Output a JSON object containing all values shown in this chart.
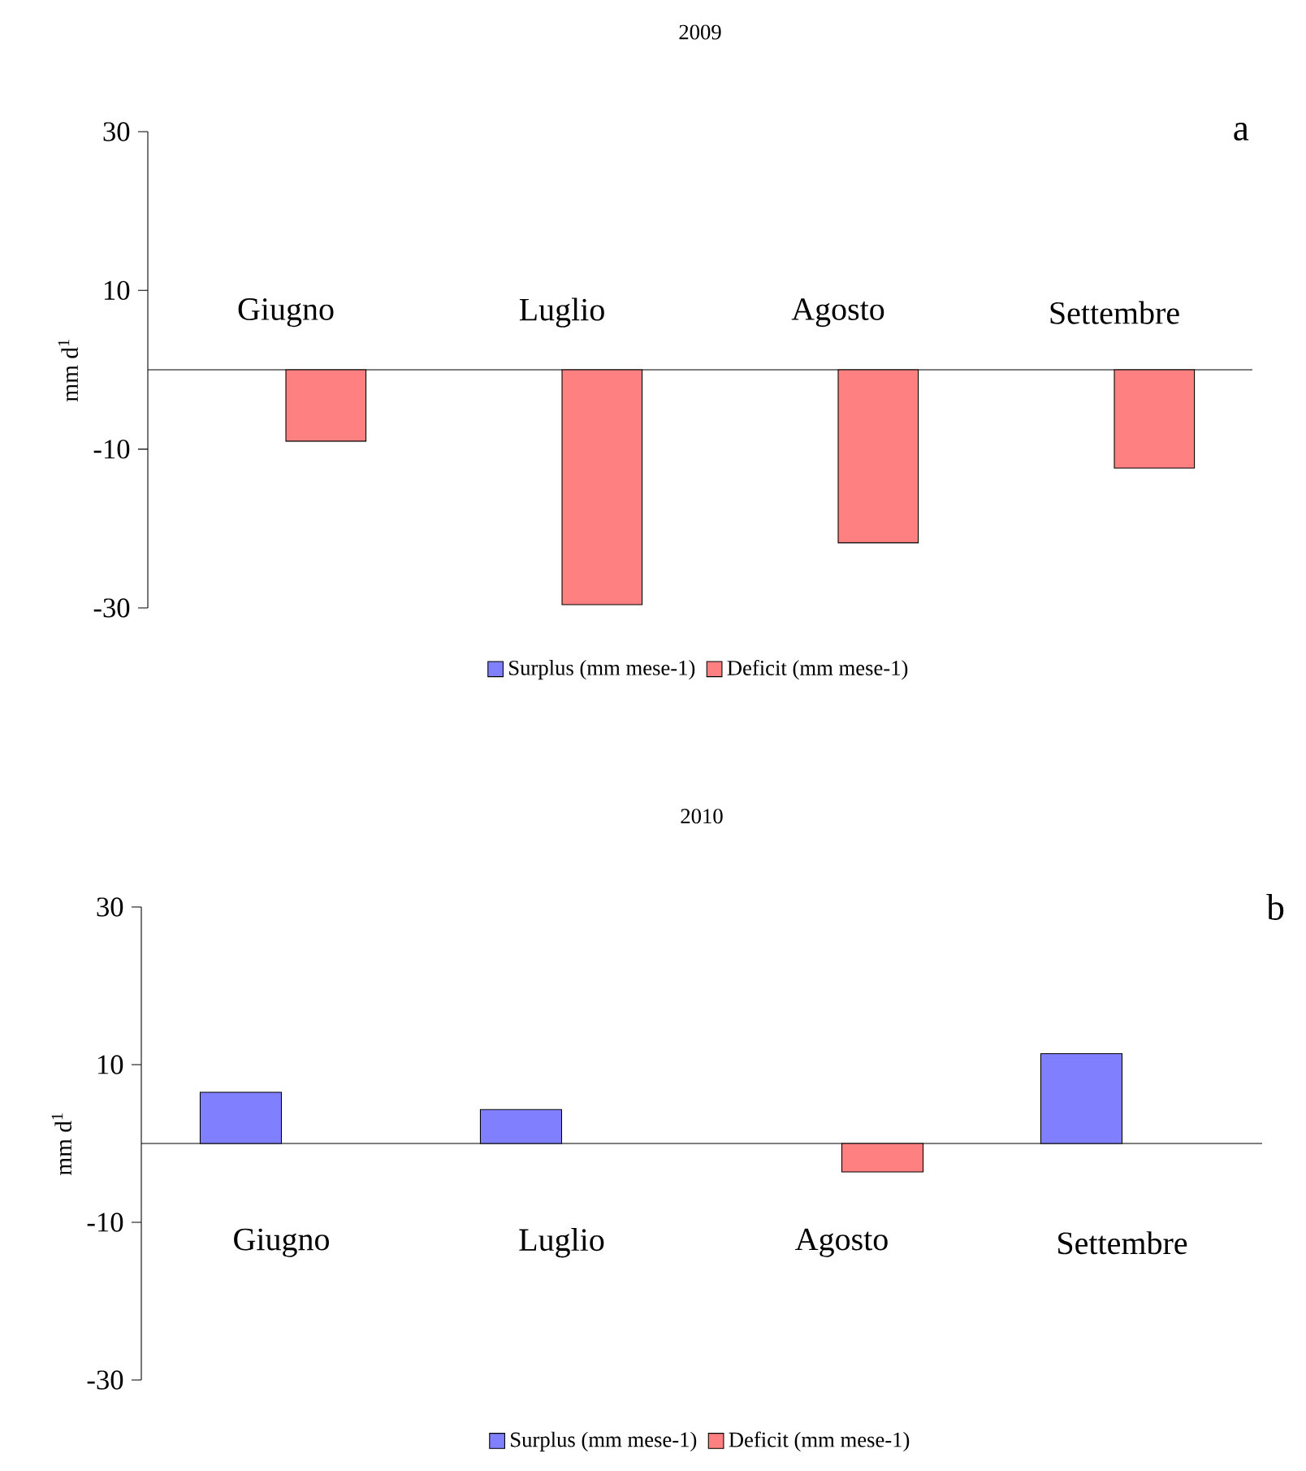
{
  "chart_data": [
    {
      "type": "bar",
      "title": "2009",
      "ylabel": "mm d$^{1}$",
      "categories": [
        "Giugno",
        "Luglio",
        "Agosto",
        "Settembre"
      ],
      "series": [
        {
          "name": "Surplus (mm mese-1)",
          "color": "#8080ff",
          "values": [
            null,
            null,
            null,
            null
          ]
        },
        {
          "name": "Deficit (mm mese-1)",
          "color": "#ff8080",
          "values": [
            -9.0,
            -29.6,
            -21.8,
            -12.4
          ]
        }
      ],
      "ylim": [
        -30,
        30
      ],
      "yticks": [
        -30,
        -10,
        10,
        30
      ],
      "legend": "bottom",
      "annotations": [
        "a"
      ]
    },
    {
      "type": "bar",
      "title": "2010",
      "ylabel": "mm d$^{1}$",
      "categories": [
        "Giugno",
        "Luglio",
        "Agosto",
        "Settembre"
      ],
      "series": [
        {
          "name": "Surplus (mm mese-1)",
          "color": "#8080ff",
          "values": [
            6.5,
            4.3,
            null,
            11.4
          ]
        },
        {
          "name": "Deficit (mm mese-1)",
          "color": "#ff8080",
          "values": [
            null,
            null,
            -3.6,
            null
          ]
        }
      ],
      "ylim": [
        -30,
        30
      ],
      "yticks": [
        -30,
        -10,
        10,
        30
      ],
      "legend": "bottom",
      "annotations": [
        "b"
      ]
    }
  ]
}
